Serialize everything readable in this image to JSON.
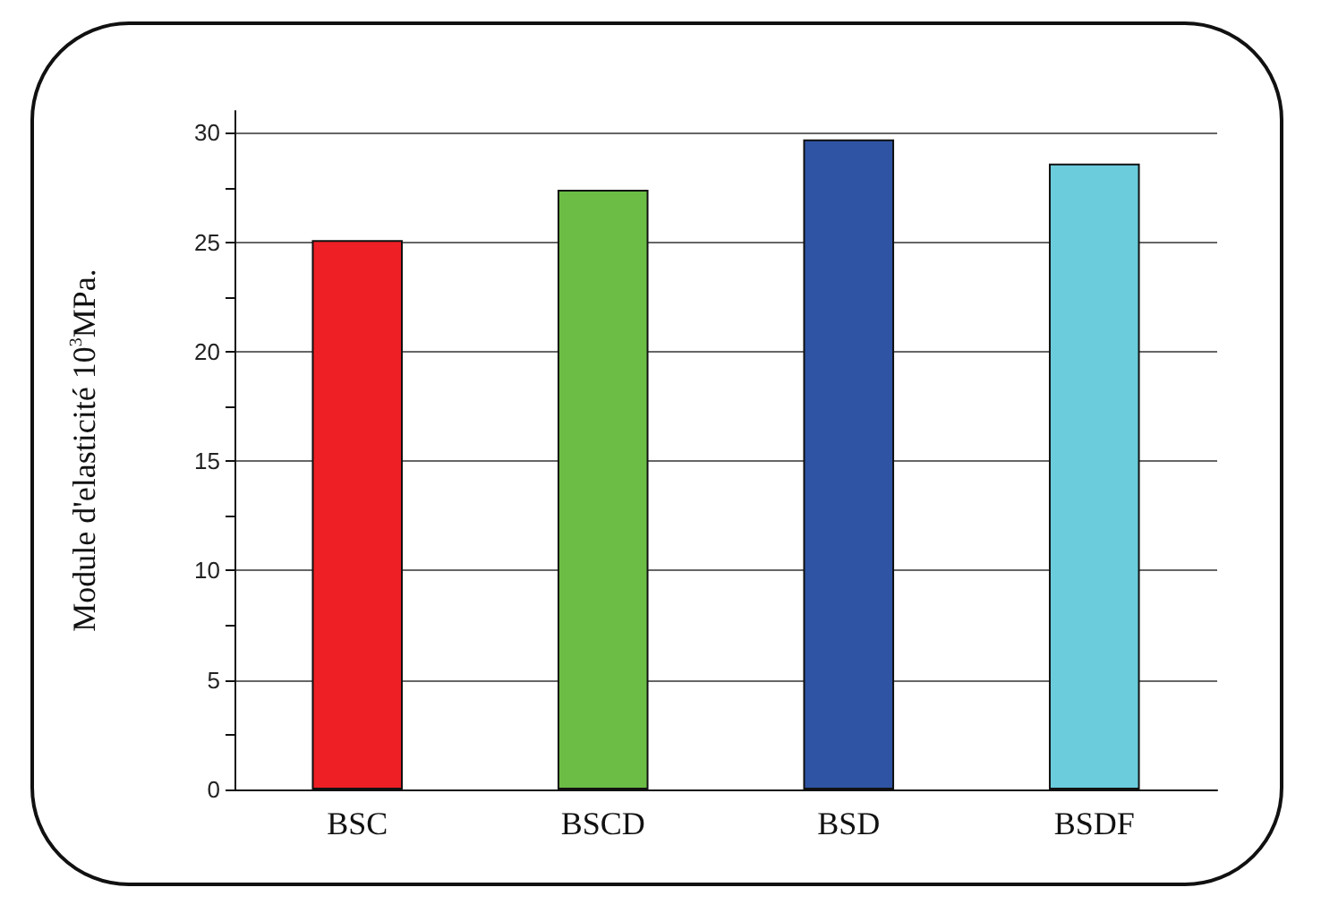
{
  "chart_data": {
    "type": "bar",
    "ylabel": "Module d'elasticité 10$^{3}$MPa.",
    "categories": [
      "BSC",
      "BSCD",
      "BSD",
      "BSDF"
    ],
    "values": [
      25.1,
      27.4,
      29.7,
      28.6
    ],
    "colors": [
      "#ee1f25",
      "#6cbd45",
      "#2f54a3",
      "#6bccdc"
    ],
    "ylim": [
      0,
      31
    ],
    "yticks": [
      0,
      {
        "value": 2.5,
        "label": null
      },
      5,
      {
        "value": 7.5,
        "label": null
      },
      10,
      {
        "value": 12.5,
        "label": null
      },
      15,
      {
        "value": 17.5,
        "label": null
      },
      20,
      {
        "value": 22.5,
        "label": null
      },
      25,
      {
        "value": 27.5,
        "label": null
      },
      30
    ],
    "grid": "y"
  }
}
